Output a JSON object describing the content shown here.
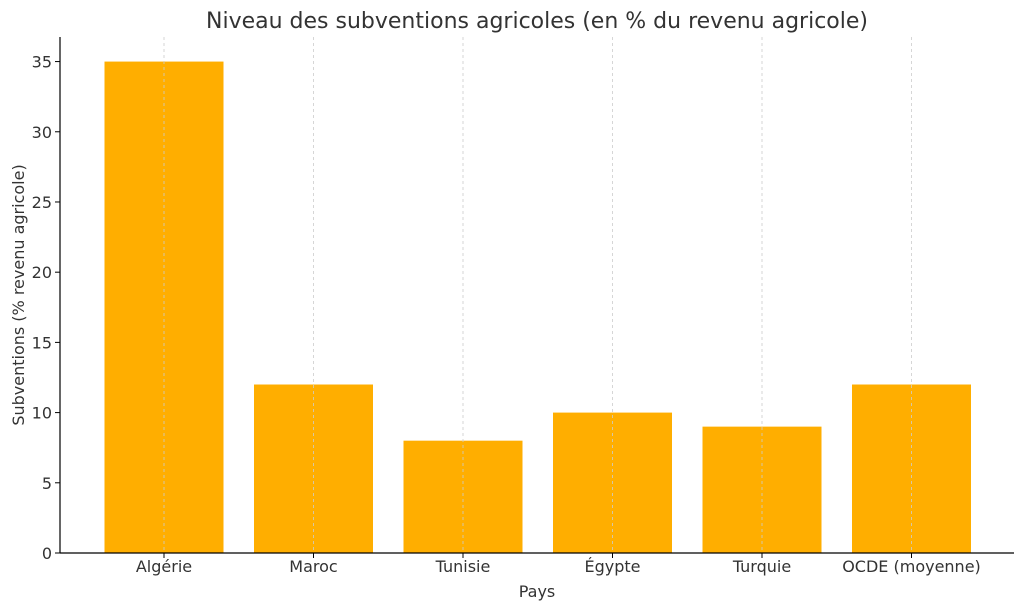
{
  "chart_data": {
    "type": "bar",
    "title": "Niveau des subventions agricoles (en % du revenu agricole)",
    "xlabel": "Pays",
    "ylabel": "Subventions (% revenu agricole)",
    "categories": [
      "Algérie",
      "Maroc",
      "Tunisie",
      "Égypte",
      "Turquie",
      "OCDE (moyenne)"
    ],
    "values": [
      35,
      12,
      8,
      10,
      9,
      12
    ],
    "ylim": [
      0,
      36.75
    ],
    "yticks": [
      0,
      5,
      10,
      15,
      20,
      25,
      30,
      35
    ],
    "grid": {
      "x": true,
      "y": false
    },
    "bar_color": "#FFAE00",
    "grid_color": "#CCCCCC",
    "axis_color": "#000000",
    "text_color": "#333333"
  }
}
